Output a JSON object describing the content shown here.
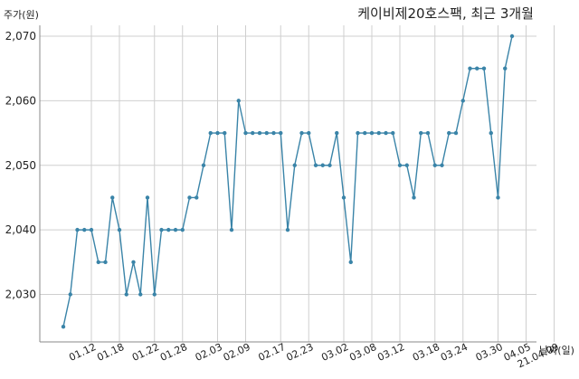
{
  "chart_data": {
    "type": "line",
    "title": "케이비제20호스팩, 최근 3개월",
    "ylabel": "주가(원)",
    "xlabel": "날짜(일)",
    "ylim": [
      2023,
      2072
    ],
    "yticks": [
      2030,
      2040,
      2050,
      2060,
      2070
    ],
    "ytick_labels": [
      "2,030",
      "2,040",
      "2,050",
      "2,060",
      "2,070"
    ],
    "xtick_labels": [
      "01.12",
      "01.18",
      "01.22",
      "01.28",
      "02.03",
      "02.09",
      "02.17",
      "02.23",
      "03.02",
      "03.08",
      "03.12",
      "03.18",
      "03.24",
      "03.30",
      "04.05",
      "21.04.09"
    ],
    "xtick_index": [
      4,
      8,
      13,
      17,
      22,
      26,
      31,
      35,
      40,
      44,
      48,
      53,
      57,
      62,
      66,
      70
    ],
    "grid": true,
    "line_color": "#3a84a8",
    "series": [
      {
        "values": [
          2025,
          2030,
          2040,
          2040,
          2040,
          2035,
          2035,
          2045,
          2040,
          2030,
          2035,
          2030,
          2045,
          2030,
          2040,
          2040,
          2040,
          2040,
          2045,
          2045,
          2050,
          2055,
          2055,
          2055,
          2040,
          2060,
          2055,
          2055,
          2055,
          2055,
          2055,
          2055,
          2040,
          2050,
          2055,
          2055,
          2050,
          2050,
          2050,
          2055,
          2045,
          2035,
          2055,
          2055,
          2055,
          2055,
          2055,
          2055,
          2050,
          2050,
          2045,
          2055,
          2055,
          2050,
          2050,
          2055,
          2055,
          2060,
          2065,
          2065,
          2065,
          2055,
          2045,
          2065,
          2070
        ]
      }
    ]
  }
}
